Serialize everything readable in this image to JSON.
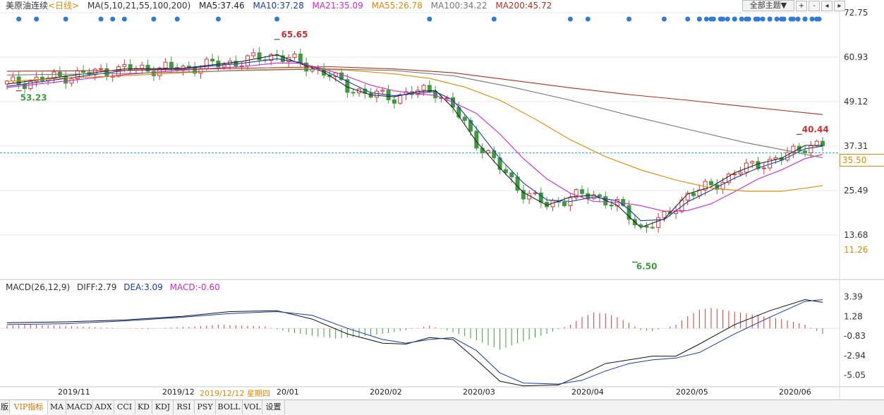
{
  "legend": {
    "instrument": "美原油连续",
    "period": "<日线>",
    "ma_header": "MA(5,10,21,55,100,200)",
    "ma_values": [
      {
        "key": "MA5",
        "text": "MA5:37.46",
        "color": "#222222"
      },
      {
        "key": "MA10",
        "text": "MA10:37.28",
        "color": "#1a3aa8"
      },
      {
        "key": "MA21",
        "text": "MA21:35.09",
        "color": "#d428c8"
      },
      {
        "key": "MA55",
        "text": "MA55:26.78",
        "color": "#e08a00"
      },
      {
        "key": "MA100",
        "text": "MA100:34.22",
        "color": "#777777"
      },
      {
        "key": "MA200",
        "text": "MA200:45.72",
        "color": "#b03020"
      }
    ]
  },
  "macd_legend": {
    "header": "MACD(26,12,9)",
    "diff": "DIFF:2.79",
    "dea": "DEA:3.09",
    "macd": "MACD:-0.60"
  },
  "toolbar": {
    "theme_label": "全部主题▼",
    "icons": [
      "+",
      "-",
      "◂",
      "▸"
    ]
  },
  "current_price_label": "35.50",
  "tabs": [
    "版",
    "VIP指标",
    "MA",
    "MACD",
    "ADX",
    "CCI",
    "KD",
    "KDJ",
    "RSI",
    "PSY",
    "BOLL",
    "VOL",
    "设置"
  ],
  "active_tab": "VIP指标",
  "x_labels": [
    {
      "text": "2019/11",
      "highlight": false
    },
    {
      "text": "2019/12",
      "highlight": false
    },
    {
      "text": "2019/12/12 星期四",
      "highlight": true
    },
    {
      "text": "20/01",
      "highlight": false
    },
    {
      "text": "2020/02",
      "highlight": false
    },
    {
      "text": "2020/03",
      "highlight": false
    },
    {
      "text": "2020/04",
      "highlight": false
    },
    {
      "text": "2020/05",
      "highlight": false
    },
    {
      "text": "2020/06",
      "highlight": false
    }
  ],
  "colors": {
    "up": "#d23a3a",
    "down": "#3f9a3f",
    "dots": "#2f7bd6",
    "grid": "#e9e9e9",
    "dashed": "#2aa0c0"
  },
  "chart_data": [
    {
      "type": "candlestick",
      "title": "美原油连续 日线",
      "y_ticks": [
        72.75,
        60.93,
        49.12,
        37.31,
        25.49,
        13.68
      ],
      "extra_y_labels": [
        "35.50",
        "11.26"
      ],
      "ylim": [
        4.5,
        72.75
      ],
      "annotations": [
        {
          "text": "65.65",
          "series": "high",
          "kind": "max"
        },
        {
          "text": "53.23",
          "series": "low",
          "kind": "min-left"
        },
        {
          "text": "6.50",
          "series": "low",
          "kind": "min"
        },
        {
          "text": "40.44",
          "series": "high",
          "kind": "recent-max"
        }
      ],
      "last_close": 35.5,
      "ma_lines": [
        {
          "name": "MA5",
          "color": "#222222",
          "points": [
            [
              0,
              53.8
            ],
            [
              10,
              55.9
            ],
            [
              20,
              57.8
            ],
            [
              30,
              58.0
            ],
            [
              40,
              59.8
            ],
            [
              46,
              61.6
            ],
            [
              50,
              59.2
            ],
            [
              54,
              57.0
            ],
            [
              58,
              53.0
            ],
            [
              62,
              50.9
            ],
            [
              66,
              50.4
            ],
            [
              70,
              51.8
            ],
            [
              73,
              52.1
            ],
            [
              76,
              47.5
            ],
            [
              80,
              38.5
            ],
            [
              84,
              31.5
            ],
            [
              88,
              25.0
            ],
            [
              92,
              21.6
            ],
            [
              96,
              23.8
            ],
            [
              100,
              24.3
            ],
            [
              104,
              21.6
            ],
            [
              106,
              18.6
            ],
            [
              108,
              15.7
            ],
            [
              112,
              18.0
            ],
            [
              116,
              24.6
            ],
            [
              120,
              26.5
            ],
            [
              124,
              30.2
            ],
            [
              128,
              32.6
            ],
            [
              132,
              34.1
            ],
            [
              136,
              37.5
            ],
            [
              139,
              37.5
            ]
          ]
        },
        {
          "name": "MA10",
          "color": "#1a3aa8",
          "points": [
            [
              0,
              53.2
            ],
            [
              10,
              55.3
            ],
            [
              20,
              57.4
            ],
            [
              30,
              57.9
            ],
            [
              40,
              59.3
            ],
            [
              46,
              60.5
            ],
            [
              50,
              59.5
            ],
            [
              54,
              57.4
            ],
            [
              58,
              54.5
            ],
            [
              62,
              51.5
            ],
            [
              66,
              50.7
            ],
            [
              70,
              51.4
            ],
            [
              73,
              51.8
            ],
            [
              76,
              49.5
            ],
            [
              80,
              42.0
            ],
            [
              84,
              34.0
            ],
            [
              88,
              27.5
            ],
            [
              92,
              23.0
            ],
            [
              96,
              22.6
            ],
            [
              100,
              23.8
            ],
            [
              104,
              22.8
            ],
            [
              106,
              20.5
            ],
            [
              108,
              17.5
            ],
            [
              112,
              17.8
            ],
            [
              116,
              22.5
            ],
            [
              120,
              25.6
            ],
            [
              124,
              28.8
            ],
            [
              128,
              31.5
            ],
            [
              132,
              33.5
            ],
            [
              136,
              36.6
            ],
            [
              139,
              37.3
            ]
          ]
        },
        {
          "name": "MA21",
          "color": "#d428c8",
          "points": [
            [
              0,
              52.9
            ],
            [
              10,
              54.6
            ],
            [
              20,
              56.3
            ],
            [
              30,
              57.5
            ],
            [
              40,
              58.4
            ],
            [
              46,
              59.4
            ],
            [
              50,
              59.3
            ],
            [
              54,
              57.8
            ],
            [
              58,
              55.8
            ],
            [
              62,
              53.5
            ],
            [
              66,
              52.0
            ],
            [
              70,
              51.2
            ],
            [
              73,
              50.8
            ],
            [
              76,
              49.0
            ],
            [
              80,
              46.0
            ],
            [
              84,
              40.5
            ],
            [
              88,
              34.0
            ],
            [
              92,
              28.6
            ],
            [
              96,
              24.8
            ],
            [
              100,
              22.6
            ],
            [
              104,
              22.4
            ],
            [
              108,
              21.5
            ],
            [
              112,
              20.0
            ],
            [
              116,
              20.2
            ],
            [
              120,
              22.0
            ],
            [
              124,
              25.2
            ],
            [
              128,
              28.6
            ],
            [
              132,
              31.0
            ],
            [
              136,
              34.0
            ],
            [
              139,
              35.1
            ]
          ]
        },
        {
          "name": "MA55",
          "color": "#e08a00",
          "points": [
            [
              0,
              54.5
            ],
            [
              10,
              55.4
            ],
            [
              20,
              56.0
            ],
            [
              30,
              56.8
            ],
            [
              40,
              57.5
            ],
            [
              50,
              57.8
            ],
            [
              58,
              57.5
            ],
            [
              66,
              56.5
            ],
            [
              72,
              55.3
            ],
            [
              78,
              53.0
            ],
            [
              84,
              49.5
            ],
            [
              90,
              44.5
            ],
            [
              96,
              39.0
            ],
            [
              102,
              34.5
            ],
            [
              108,
              31.0
            ],
            [
              114,
              28.3
            ],
            [
              120,
              26.2
            ],
            [
              126,
              25.3
            ],
            [
              132,
              25.3
            ],
            [
              139,
              26.8
            ]
          ]
        },
        {
          "name": "MA100",
          "color": "#777777",
          "points": [
            [
              0,
              56.2
            ],
            [
              20,
              56.6
            ],
            [
              40,
              57.4
            ],
            [
              55,
              57.8
            ],
            [
              66,
              57.4
            ],
            [
              76,
              56.0
            ],
            [
              86,
              53.0
            ],
            [
              96,
              49.5
            ],
            [
              106,
              45.5
            ],
            [
              116,
              41.8
            ],
            [
              126,
              38.2
            ],
            [
              134,
              35.8
            ],
            [
              139,
              34.2
            ]
          ]
        },
        {
          "name": "MA200",
          "color": "#b03020",
          "points": [
            [
              0,
              57.2
            ],
            [
              20,
              57.4
            ],
            [
              40,
              58.0
            ],
            [
              55,
              58.4
            ],
            [
              66,
              57.8
            ],
            [
              76,
              56.8
            ],
            [
              86,
              54.8
            ],
            [
              96,
              52.8
            ],
            [
              106,
              51.0
            ],
            [
              116,
              49.5
            ],
            [
              126,
              47.8
            ],
            [
              134,
              46.5
            ],
            [
              139,
              45.7
            ]
          ]
        }
      ]
    },
    {
      "type": "bar+line",
      "title": "MACD(26,12,9)",
      "y_ticks": [
        3.39,
        1.28,
        -0.83,
        -2.94,
        -5.05
      ],
      "ylim": [
        -6.3,
        4.2
      ],
      "diff": [
        [
          0,
          0.6
        ],
        [
          10,
          0.7
        ],
        [
          20,
          0.9
        ],
        [
          30,
          1.3
        ],
        [
          38,
          1.8
        ],
        [
          46,
          1.9
        ],
        [
          52,
          1.0
        ],
        [
          58,
          -0.6
        ],
        [
          64,
          -1.6
        ],
        [
          68,
          -1.7
        ],
        [
          72,
          -1.0
        ],
        [
          76,
          -1.2
        ],
        [
          80,
          -3.4
        ],
        [
          84,
          -5.7
        ],
        [
          88,
          -6.2
        ],
        [
          94,
          -6.1
        ],
        [
          98,
          -5.0
        ],
        [
          102,
          -3.8
        ],
        [
          106,
          -3.4
        ],
        [
          110,
          -3.0
        ],
        [
          114,
          -3.0
        ],
        [
          118,
          -1.7
        ],
        [
          124,
          0.4
        ],
        [
          130,
          1.9
        ],
        [
          136,
          3.1
        ],
        [
          139,
          2.8
        ]
      ],
      "dea": [
        [
          0,
          0.4
        ],
        [
          10,
          0.5
        ],
        [
          20,
          0.8
        ],
        [
          30,
          1.2
        ],
        [
          38,
          1.6
        ],
        [
          46,
          1.8
        ],
        [
          52,
          1.4
        ],
        [
          58,
          0.0
        ],
        [
          64,
          -1.2
        ],
        [
          68,
          -1.6
        ],
        [
          72,
          -1.2
        ],
        [
          76,
          -1.0
        ],
        [
          80,
          -2.4
        ],
        [
          84,
          -4.8
        ],
        [
          88,
          -5.9
        ],
        [
          94,
          -6.0
        ],
        [
          98,
          -5.6
        ],
        [
          102,
          -4.6
        ],
        [
          106,
          -3.8
        ],
        [
          110,
          -3.4
        ],
        [
          114,
          -3.2
        ],
        [
          118,
          -2.6
        ],
        [
          124,
          -0.6
        ],
        [
          130,
          1.2
        ],
        [
          136,
          2.9
        ],
        [
          139,
          3.1
        ]
      ],
      "hist": [
        [
          0,
          0.3
        ],
        [
          4,
          0.4
        ],
        [
          8,
          0.3
        ],
        [
          12,
          0.2
        ],
        [
          16,
          0.1
        ],
        [
          20,
          0.0
        ],
        [
          24,
          -0.1
        ],
        [
          28,
          0.1
        ],
        [
          32,
          0.2
        ],
        [
          36,
          0.4
        ],
        [
          40,
          0.3
        ],
        [
          44,
          0.2
        ],
        [
          48,
          -0.4
        ],
        [
          52,
          -0.8
        ],
        [
          56,
          -1.1
        ],
        [
          60,
          -0.9
        ],
        [
          64,
          -0.6
        ],
        [
          68,
          -0.2
        ],
        [
          72,
          0.3
        ],
        [
          76,
          -0.4
        ],
        [
          80,
          -1.3
        ],
        [
          84,
          -2.3
        ],
        [
          88,
          -1.4
        ],
        [
          92,
          -0.6
        ],
        [
          96,
          0.4
        ],
        [
          98,
          1.2
        ],
        [
          100,
          1.7
        ],
        [
          102,
          1.6
        ],
        [
          104,
          1.2
        ],
        [
          106,
          0.6
        ],
        [
          108,
          -0.2
        ],
        [
          110,
          -0.3
        ],
        [
          112,
          0.0
        ],
        [
          114,
          0.4
        ],
        [
          116,
          1.3
        ],
        [
          118,
          2.0
        ],
        [
          120,
          2.2
        ],
        [
          122,
          2.0
        ],
        [
          124,
          1.8
        ],
        [
          126,
          1.6
        ],
        [
          128,
          1.4
        ],
        [
          130,
          1.2
        ],
        [
          132,
          1.0
        ],
        [
          134,
          0.7
        ],
        [
          136,
          0.4
        ],
        [
          138,
          -0.3
        ],
        [
          139,
          -0.6
        ]
      ]
    }
  ]
}
